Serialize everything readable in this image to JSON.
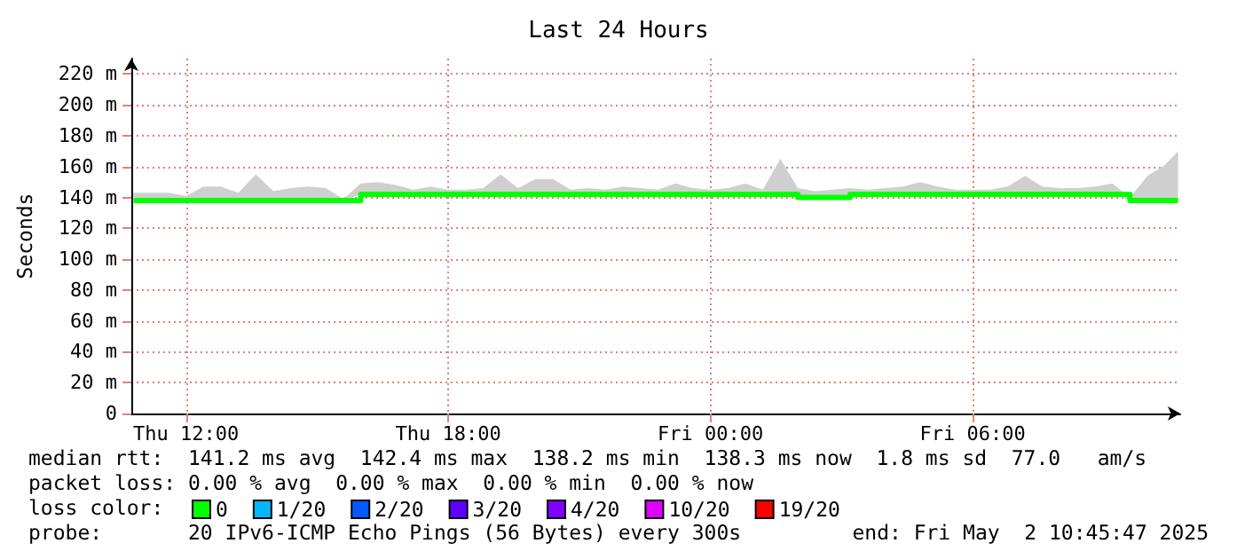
{
  "chart_data": {
    "type": "step",
    "title": "Last 24 Hours",
    "ylabel": "Seconds",
    "legend_title": "loss color:",
    "annotations": [
      "median rtt:  141.2 ms avg  142.4 ms max  138.2 ms min  138.3 ms now  1.8 ms sd  77.0   am/s",
      "packet loss: 0.00 % avg  0.00 % max  0.00 % min  0.00 % now",
      "probe:       20 IPv6-ICMP Echo Pings (56 Bytes) every 300s",
      "end: Fri May  2 10:45:47 2025"
    ],
    "x": [
      "2025-05-01T10:48",
      "2025-05-01T11:12",
      "2025-05-01T11:36",
      "2025-05-01T12:00",
      "2025-05-01T12:24",
      "2025-05-01T12:48",
      "2025-05-01T13:12",
      "2025-05-01T13:36",
      "2025-05-01T14:00",
      "2025-05-01T14:24",
      "2025-05-01T14:48",
      "2025-05-01T15:12",
      "2025-05-01T15:36",
      "2025-05-01T16:00",
      "2025-05-01T16:24",
      "2025-05-01T16:48",
      "2025-05-01T17:12",
      "2025-05-01T17:36",
      "2025-05-01T18:00",
      "2025-05-01T18:24",
      "2025-05-01T18:48",
      "2025-05-01T19:12",
      "2025-05-01T19:36",
      "2025-05-01T20:00",
      "2025-05-01T20:24",
      "2025-05-01T20:48",
      "2025-05-01T21:12",
      "2025-05-01T21:36",
      "2025-05-01T22:00",
      "2025-05-01T22:24",
      "2025-05-01T22:48",
      "2025-05-01T23:12",
      "2025-05-01T23:36",
      "2025-05-02T00:00",
      "2025-05-02T00:24",
      "2025-05-02T00:48",
      "2025-05-02T01:12",
      "2025-05-02T01:36",
      "2025-05-02T02:00",
      "2025-05-02T02:24",
      "2025-05-02T02:48",
      "2025-05-02T03:12",
      "2025-05-02T03:36",
      "2025-05-02T04:00",
      "2025-05-02T04:24",
      "2025-05-02T04:48",
      "2025-05-02T05:12",
      "2025-05-02T05:36",
      "2025-05-02T06:00",
      "2025-05-02T06:24",
      "2025-05-02T06:48",
      "2025-05-02T07:12",
      "2025-05-02T07:36",
      "2025-05-02T08:00",
      "2025-05-02T08:24",
      "2025-05-02T08:48",
      "2025-05-02T09:12",
      "2025-05-02T09:36",
      "2025-05-02T10:00",
      "2025-05-02T10:24",
      "2025-05-02T10:42"
    ],
    "series": [
      {
        "name": "0",
        "color": "#00ff00",
        "values": [
          138,
          138,
          138,
          138,
          138,
          138,
          138,
          138,
          138,
          138,
          138,
          138,
          138,
          142,
          142,
          142,
          142,
          142,
          142,
          142,
          142,
          142,
          142,
          142,
          142,
          142,
          142,
          142,
          142,
          142,
          142,
          142,
          142,
          142,
          142,
          142,
          142,
          142,
          140,
          140,
          140,
          142,
          142,
          142,
          142,
          142,
          142,
          142,
          142,
          142,
          142,
          142,
          142,
          142,
          142,
          142,
          142,
          138,
          138,
          138,
          138
        ],
        "lower": [
          138,
          138,
          138,
          138,
          138,
          138,
          138,
          138,
          138,
          138,
          138,
          138,
          138,
          142,
          142,
          142,
          142,
          142,
          142,
          142,
          142,
          142,
          142,
          142,
          142,
          142,
          142,
          142,
          142,
          142,
          142,
          142,
          142,
          142,
          142,
          142,
          142,
          142,
          140,
          140,
          140,
          142,
          142,
          142,
          142,
          142,
          142,
          142,
          142,
          142,
          142,
          142,
          142,
          142,
          142,
          142,
          142,
          138,
          138,
          138,
          138
        ],
        "upper": [
          143,
          143,
          143,
          141,
          147,
          147,
          143,
          155,
          144,
          146,
          147,
          146,
          139,
          149,
          150,
          148,
          145,
          147,
          145,
          145,
          146,
          155,
          146,
          152,
          152,
          145,
          146,
          145,
          147,
          146,
          145,
          149,
          146,
          145,
          146,
          149,
          145,
          165,
          146,
          144,
          145,
          146,
          145,
          146,
          147,
          150,
          147,
          145,
          145,
          145,
          147,
          154,
          147,
          146,
          146,
          147,
          149,
          140,
          154,
          161,
          170
        ]
      },
      {
        "name": "1/20",
        "color": "#00b8ff",
        "values": [
          null,
          null,
          null,
          null,
          null,
          null,
          null,
          null,
          null,
          null,
          null,
          null,
          null,
          null,
          null,
          null,
          null,
          null,
          null,
          null,
          null,
          null,
          null,
          null,
          null,
          null,
          null,
          null,
          null,
          null,
          null,
          null,
          null,
          null,
          null,
          null,
          null,
          null,
          null,
          null,
          null,
          null,
          null,
          null,
          null,
          null,
          null,
          null,
          null,
          null,
          null,
          null,
          null,
          null,
          null,
          null,
          null,
          null,
          null,
          null,
          null
        ]
      },
      {
        "name": "2/20",
        "color": "#0059ff",
        "values": [
          null,
          null,
          null,
          null,
          null,
          null,
          null,
          null,
          null,
          null,
          null,
          null,
          null,
          null,
          null,
          null,
          null,
          null,
          null,
          null,
          null,
          null,
          null,
          null,
          null,
          null,
          null,
          null,
          null,
          null,
          null,
          null,
          null,
          null,
          null,
          null,
          null,
          null,
          null,
          null,
          null,
          null,
          null,
          null,
          null,
          null,
          null,
          null,
          null,
          null,
          null,
          null,
          null,
          null,
          null,
          null,
          null,
          null,
          null,
          null,
          null
        ]
      },
      {
        "name": "3/20",
        "color": "#5e00ff",
        "values": [
          null,
          null,
          null,
          null,
          null,
          null,
          null,
          null,
          null,
          null,
          null,
          null,
          null,
          null,
          null,
          null,
          null,
          null,
          null,
          null,
          null,
          null,
          null,
          null,
          null,
          null,
          null,
          null,
          null,
          null,
          null,
          null,
          null,
          null,
          null,
          null,
          null,
          null,
          null,
          null,
          null,
          null,
          null,
          null,
          null,
          null,
          null,
          null,
          null,
          null,
          null,
          null,
          null,
          null,
          null,
          null,
          null,
          null,
          null,
          null,
          null
        ]
      },
      {
        "name": "4/20",
        "color": "#7e00ff",
        "values": [
          null,
          null,
          null,
          null,
          null,
          null,
          null,
          null,
          null,
          null,
          null,
          null,
          null,
          null,
          null,
          null,
          null,
          null,
          null,
          null,
          null,
          null,
          null,
          null,
          null,
          null,
          null,
          null,
          null,
          null,
          null,
          null,
          null,
          null,
          null,
          null,
          null,
          null,
          null,
          null,
          null,
          null,
          null,
          null,
          null,
          null,
          null,
          null,
          null,
          null,
          null,
          null,
          null,
          null,
          null,
          null,
          null,
          null,
          null,
          null,
          null
        ]
      },
      {
        "name": "10/20",
        "color": "#dd00ff",
        "values": [
          null,
          null,
          null,
          null,
          null,
          null,
          null,
          null,
          null,
          null,
          null,
          null,
          null,
          null,
          null,
          null,
          null,
          null,
          null,
          null,
          null,
          null,
          null,
          null,
          null,
          null,
          null,
          null,
          null,
          null,
          null,
          null,
          null,
          null,
          null,
          null,
          null,
          null,
          null,
          null,
          null,
          null,
          null,
          null,
          null,
          null,
          null,
          null,
          null,
          null,
          null,
          null,
          null,
          null,
          null,
          null,
          null,
          null,
          null,
          null,
          null
        ]
      },
      {
        "name": "19/20",
        "color": "#ff0000",
        "values": [
          null,
          null,
          null,
          null,
          null,
          null,
          null,
          null,
          null,
          null,
          null,
          null,
          null,
          null,
          null,
          null,
          null,
          null,
          null,
          null,
          null,
          null,
          null,
          null,
          null,
          null,
          null,
          null,
          null,
          null,
          null,
          null,
          null,
          null,
          null,
          null,
          null,
          null,
          null,
          null,
          null,
          null,
          null,
          null,
          null,
          null,
          null,
          null,
          null,
          null,
          null,
          null,
          null,
          null,
          null,
          null,
          null,
          null,
          null,
          null,
          null
        ]
      }
    ],
    "xlim": [
      "2025-05-01T10:45",
      "2025-05-02T10:45"
    ],
    "xticks": [
      {
        "value": "2025-05-01T12:00",
        "label": "Thu 12:00"
      },
      {
        "value": "2025-05-01T18:00",
        "label": "Thu 18:00"
      },
      {
        "value": "2025-05-02T00:00",
        "label": "Fri 00:00"
      },
      {
        "value": "2025-05-02T06:00",
        "label": "Fri 06:00"
      }
    ],
    "ylim": [
      0,
      230
    ],
    "yticks": [
      0,
      {
        "value": 20,
        "label": "20 m"
      },
      {
        "value": 40,
        "label": "40 m"
      },
      {
        "value": 60,
        "label": "60 m"
      },
      {
        "value": 80,
        "label": "80 m"
      },
      {
        "value": 100,
        "label": "100 m"
      },
      {
        "value": 120,
        "label": "120 m"
      },
      {
        "value": 140,
        "label": "140 m"
      },
      {
        "value": 160,
        "label": "160 m"
      },
      {
        "value": 180,
        "label": "180 m"
      },
      {
        "value": 200,
        "label": "200 m"
      },
      {
        "value": 220,
        "label": "220 m"
      }
    ],
    "grid": true,
    "legend": "bottom",
    "marker": "none",
    "line_style": "solid"
  }
}
